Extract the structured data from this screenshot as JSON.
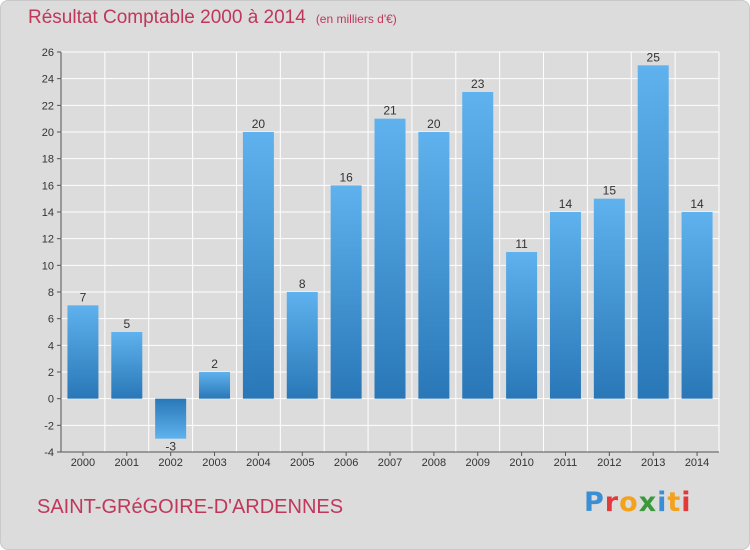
{
  "chart_data": {
    "type": "bar",
    "title": "Résultat Comptable 2000 à 2014",
    "unit_note": "(en milliers d'€)",
    "categories": [
      "2000",
      "2001",
      "2002",
      "2003",
      "2004",
      "2005",
      "2006",
      "2007",
      "2008",
      "2009",
      "2010",
      "2011",
      "2012",
      "2013",
      "2014"
    ],
    "values": [
      7,
      5,
      -3,
      2,
      20,
      8,
      16,
      21,
      20,
      23,
      11,
      14,
      15,
      25,
      14
    ],
    "ylim": [
      -4,
      26
    ],
    "yticks": [
      -4,
      -2,
      0,
      2,
      4,
      6,
      8,
      10,
      12,
      14,
      16,
      18,
      20,
      22,
      24,
      26
    ],
    "grid": true,
    "xlabel": "",
    "ylabel": ""
  },
  "footer": {
    "commune": "SAINT-GRéGOIRE-D'ARDENNES",
    "brand_letters": [
      "P",
      "r",
      "o",
      "x",
      "i",
      "t",
      "i"
    ]
  },
  "colors": {
    "title": "#c0375a",
    "bar_top": "#5fb2ee",
    "bar_bottom": "#2977b7",
    "grid": "#ffffff",
    "background": "#dcdcdc",
    "brand_letters": [
      "#3a8fd4",
      "#e23a3a",
      "#f4a21c",
      "#3a9a3a",
      "#3a8fd4",
      "#f4a21c",
      "#e23a3a"
    ]
  }
}
